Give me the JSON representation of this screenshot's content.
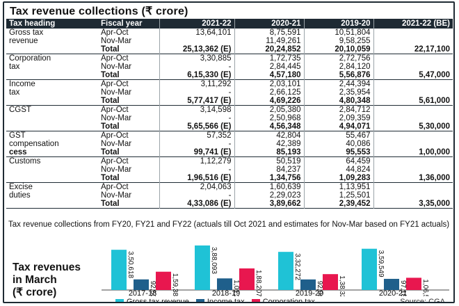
{
  "title": "Tax revenue collections  (₹ crore)",
  "table": {
    "headers": [
      "Tax heading",
      "Fiscal year",
      "2021-22",
      "2020-21",
      "2019-20",
      "2021-22 (BE)"
    ],
    "groups": [
      {
        "heading": [
          "Gross tax",
          "revenue"
        ],
        "rows": [
          [
            "Apr-Oct",
            "13,64,101",
            "8,75,591",
            "10,51,804",
            ""
          ],
          [
            "Nov-Mar",
            "",
            "11,49,261",
            "9,58,255",
            ""
          ],
          [
            "Total",
            "25,13,362 (E)",
            "20,24,852",
            "20,10,059",
            "22,17,100"
          ]
        ]
      },
      {
        "heading": [
          "Corporation",
          "tax"
        ],
        "rows": [
          [
            "Apr-Oct",
            "3,30,885",
            "1,72,735",
            "2,72,756",
            ""
          ],
          [
            "Nov-Mar",
            "-",
            "2,84,445",
            "2,84,120",
            ""
          ],
          [
            "Total",
            "6,15,330 (E)",
            "4,57,180",
            "5,56,876",
            "5,47,000"
          ]
        ]
      },
      {
        "heading": [
          "Income",
          "tax"
        ],
        "rows": [
          [
            "Apr-Oct",
            "3,11,292",
            "2,03,101",
            "2,44,394",
            ""
          ],
          [
            "Nov-Mar",
            "-",
            "2,66,125",
            "2,35,954",
            ""
          ],
          [
            "Total",
            "5,77,417 (E)",
            "4,69,226",
            "4,80,348",
            "5,61,000"
          ]
        ]
      },
      {
        "heading": [
          "CGST",
          ""
        ],
        "rows": [
          [
            "Apr-Oct",
            "3,14,598",
            "2,05,380",
            "2,84,712",
            ""
          ],
          [
            "Nov-Mar",
            "-",
            "2,50,968",
            "2,09,359",
            ""
          ],
          [
            "Total",
            "5,65,566 (E)",
            "4,56,348",
            "4,94,071",
            "5,30,000"
          ]
        ]
      },
      {
        "heading": [
          "GST",
          "compensation",
          "cess"
        ],
        "rows": [
          [
            "Apr-Oct",
            "57,352",
            "42,804",
            "55,467",
            ""
          ],
          [
            "Nov-Mar",
            "-",
            "42,389",
            "40,086",
            ""
          ],
          [
            "Total",
            "99,741 (E)",
            "85,193",
            "95,553",
            "1,00,000"
          ]
        ]
      },
      {
        "heading": [
          "Customs",
          ""
        ],
        "rows": [
          [
            "Apr-Oct",
            "1,12,279",
            "50,519",
            "64,459",
            ""
          ],
          [
            "Nov-Mar",
            "-",
            "84,237",
            "44,824",
            ""
          ],
          [
            "Total",
            "1,96,516 (E)",
            "1,34,756",
            "1,09,283",
            "1,36,000"
          ]
        ]
      },
      {
        "heading": [
          "Excise",
          "duties"
        ],
        "rows": [
          [
            "Apr-Oct",
            "2,04,063",
            "1,60,639",
            "1,13,951",
            ""
          ],
          [
            "Nov-Mar",
            "-",
            "2,29,023",
            "1,25,501",
            ""
          ],
          [
            "Total",
            "4,33,086 (E)",
            "3,89,662",
            "2,39,452",
            "3,35,000"
          ]
        ]
      }
    ]
  },
  "note": "Tax revenue collections from FY20, FY21 and FY22 (actuals till Oct 2021 and estimates for Nov-Mar based on FY21 actuals)",
  "chart_title": [
    "Tax revenues",
    "in March",
    "(₹ crore)"
  ],
  "source": "Source: CGA",
  "chart_data": {
    "type": "bar",
    "categories": [
      "2017-18",
      "2018-19",
      "2019-20",
      "2020-21"
    ],
    "series": [
      {
        "name": "Gross tax revenue",
        "values": [
          350618,
          388093,
          332272,
          359549
        ],
        "labels": [
          "3,50,618",
          "3,88,093",
          "3,32,272",
          "3,59,549"
        ],
        "color": "#1fc2d6"
      },
      {
        "name": "Income tax",
        "values": [
          92505,
          101206,
          92049,
          97183
        ],
        "labels": [
          "92,505",
          "1,01,206",
          "92,049",
          "97,183"
        ],
        "color": "#1f5f8b"
      },
      {
        "name": "Corporation tax",
        "values": [
          159388,
          188207,
          138322,
          106598
        ],
        "labels": [
          "1,59,388",
          "1,88,207",
          "1,38,322",
          "1,06,598"
        ],
        "color": "#e8174f"
      }
    ],
    "ylim": [
      0,
      400000
    ]
  }
}
